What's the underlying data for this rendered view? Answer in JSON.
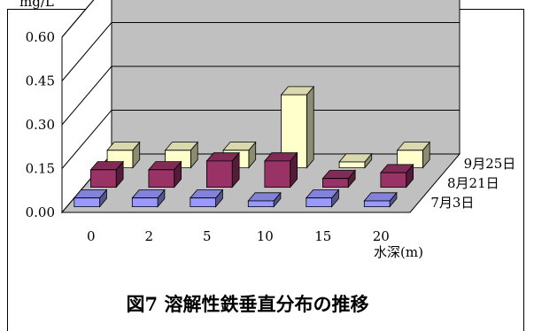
{
  "caption": "図7 溶解性鉄垂直分布の推移",
  "chart_data": {
    "type": "bar",
    "variant": "3d-clustered-depth",
    "unit_label": "mg/L",
    "xlabel": "水深(m)",
    "categories": [
      "0",
      "2",
      "5",
      "10",
      "15",
      "20"
    ],
    "ylim": [
      0,
      0.6
    ],
    "yticks": [
      "0.00",
      "0.15",
      "0.30",
      "0.45",
      "0.60"
    ],
    "series": [
      {
        "name": "7月3日",
        "values": [
          0.03,
          0.03,
          0.03,
          0.02,
          0.03,
          0.02
        ],
        "color": "#9999ff"
      },
      {
        "name": "8月21日",
        "values": [
          0.06,
          0.06,
          0.09,
          0.09,
          0.03,
          0.05
        ],
        "color": "#993366"
      },
      {
        "name": "9月25日",
        "values": [
          0.06,
          0.06,
          0.06,
          0.25,
          0.02,
          0.06
        ],
        "color": "#ffffcc"
      }
    ],
    "grid": true,
    "legend": "series labels along depth axis (right)"
  }
}
